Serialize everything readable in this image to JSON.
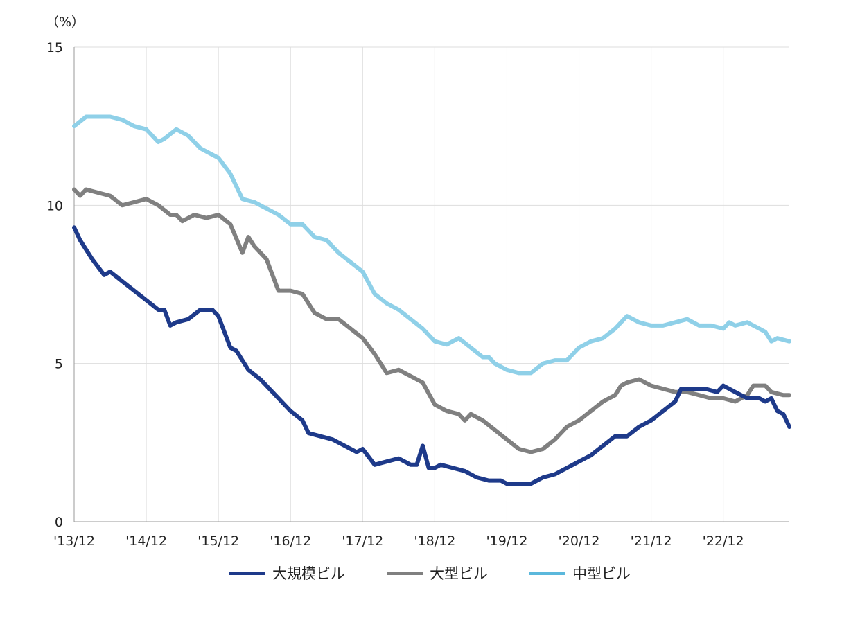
{
  "chart_data": {
    "type": "line",
    "unit_label": "（%）",
    "ylim": [
      0,
      15
    ],
    "yticks": [
      0,
      5,
      10,
      15
    ],
    "xlim": [
      2013.917,
      2023.833
    ],
    "xticks": [
      {
        "label": "'13/12",
        "value": 2013.917
      },
      {
        "label": "'14/12",
        "value": 2014.917
      },
      {
        "label": "'15/12",
        "value": 2015.917
      },
      {
        "label": "'16/12",
        "value": 2016.917
      },
      {
        "label": "'17/12",
        "value": 2017.917
      },
      {
        "label": "'18/12",
        "value": 2018.917
      },
      {
        "label": "'19/12",
        "value": 2019.917
      },
      {
        "label": "'20/12",
        "value": 2020.917
      },
      {
        "label": "'21/12",
        "value": 2021.917
      },
      {
        "label": "'22/12",
        "value": 2022.917
      }
    ],
    "grid": "vertical-and-horizontal",
    "legend_position": "bottom",
    "series": [
      {
        "name": "大規模ビル",
        "color": "#1e3a8a",
        "points": [
          [
            2013.917,
            9.3
          ],
          [
            2014.0,
            8.9
          ],
          [
            2014.167,
            8.3
          ],
          [
            2014.333,
            7.8
          ],
          [
            2014.417,
            7.9
          ],
          [
            2014.583,
            7.6
          ],
          [
            2014.75,
            7.3
          ],
          [
            2014.917,
            7.0
          ],
          [
            2015.083,
            6.7
          ],
          [
            2015.167,
            6.7
          ],
          [
            2015.25,
            6.2
          ],
          [
            2015.333,
            6.3
          ],
          [
            2015.5,
            6.4
          ],
          [
            2015.667,
            6.7
          ],
          [
            2015.833,
            6.7
          ],
          [
            2015.917,
            6.5
          ],
          [
            2016.083,
            5.5
          ],
          [
            2016.167,
            5.4
          ],
          [
            2016.333,
            4.8
          ],
          [
            2016.5,
            4.5
          ],
          [
            2016.667,
            4.1
          ],
          [
            2016.917,
            3.5
          ],
          [
            2017.083,
            3.2
          ],
          [
            2017.167,
            2.8
          ],
          [
            2017.333,
            2.7
          ],
          [
            2017.5,
            2.6
          ],
          [
            2017.667,
            2.4
          ],
          [
            2017.833,
            2.2
          ],
          [
            2017.917,
            2.3
          ],
          [
            2018.083,
            1.8
          ],
          [
            2018.25,
            1.9
          ],
          [
            2018.417,
            2.0
          ],
          [
            2018.583,
            1.8
          ],
          [
            2018.667,
            1.8
          ],
          [
            2018.75,
            2.4
          ],
          [
            2018.833,
            1.7
          ],
          [
            2018.917,
            1.7
          ],
          [
            2019.0,
            1.8
          ],
          [
            2019.167,
            1.7
          ],
          [
            2019.333,
            1.6
          ],
          [
            2019.5,
            1.4
          ],
          [
            2019.667,
            1.3
          ],
          [
            2019.833,
            1.3
          ],
          [
            2019.917,
            1.2
          ],
          [
            2020.083,
            1.2
          ],
          [
            2020.25,
            1.2
          ],
          [
            2020.417,
            1.4
          ],
          [
            2020.583,
            1.5
          ],
          [
            2020.75,
            1.7
          ],
          [
            2020.917,
            1.9
          ],
          [
            2021.083,
            2.1
          ],
          [
            2021.25,
            2.4
          ],
          [
            2021.417,
            2.7
          ],
          [
            2021.583,
            2.7
          ],
          [
            2021.75,
            3.0
          ],
          [
            2021.917,
            3.2
          ],
          [
            2022.083,
            3.5
          ],
          [
            2022.25,
            3.8
          ],
          [
            2022.333,
            4.2
          ],
          [
            2022.5,
            4.2
          ],
          [
            2022.667,
            4.2
          ],
          [
            2022.833,
            4.1
          ],
          [
            2022.917,
            4.3
          ],
          [
            2023.083,
            4.1
          ],
          [
            2023.25,
            3.9
          ],
          [
            2023.417,
            3.9
          ],
          [
            2023.5,
            3.8
          ],
          [
            2023.583,
            3.9
          ],
          [
            2023.667,
            3.5
          ],
          [
            2023.75,
            3.4
          ],
          [
            2023.833,
            3.0
          ]
        ]
      },
      {
        "name": "大型ビル",
        "color": "#808080",
        "points": [
          [
            2013.917,
            10.5
          ],
          [
            2014.0,
            10.3
          ],
          [
            2014.083,
            10.5
          ],
          [
            2014.25,
            10.4
          ],
          [
            2014.417,
            10.3
          ],
          [
            2014.583,
            10.0
          ],
          [
            2014.75,
            10.1
          ],
          [
            2014.917,
            10.2
          ],
          [
            2015.083,
            10.0
          ],
          [
            2015.25,
            9.7
          ],
          [
            2015.333,
            9.7
          ],
          [
            2015.417,
            9.5
          ],
          [
            2015.583,
            9.7
          ],
          [
            2015.75,
            9.6
          ],
          [
            2015.917,
            9.7
          ],
          [
            2016.083,
            9.4
          ],
          [
            2016.25,
            8.5
          ],
          [
            2016.333,
            9.0
          ],
          [
            2016.417,
            8.7
          ],
          [
            2016.583,
            8.3
          ],
          [
            2016.75,
            7.3
          ],
          [
            2016.917,
            7.3
          ],
          [
            2017.083,
            7.2
          ],
          [
            2017.25,
            6.6
          ],
          [
            2017.417,
            6.4
          ],
          [
            2017.583,
            6.4
          ],
          [
            2017.75,
            6.1
          ],
          [
            2017.917,
            5.8
          ],
          [
            2018.083,
            5.3
          ],
          [
            2018.25,
            4.7
          ],
          [
            2018.417,
            4.8
          ],
          [
            2018.583,
            4.6
          ],
          [
            2018.75,
            4.4
          ],
          [
            2018.917,
            3.7
          ],
          [
            2019.083,
            3.5
          ],
          [
            2019.25,
            3.4
          ],
          [
            2019.333,
            3.2
          ],
          [
            2019.417,
            3.4
          ],
          [
            2019.583,
            3.2
          ],
          [
            2019.75,
            2.9
          ],
          [
            2019.917,
            2.6
          ],
          [
            2020.083,
            2.3
          ],
          [
            2020.25,
            2.2
          ],
          [
            2020.417,
            2.3
          ],
          [
            2020.583,
            2.6
          ],
          [
            2020.75,
            3.0
          ],
          [
            2020.917,
            3.2
          ],
          [
            2021.083,
            3.5
          ],
          [
            2021.25,
            3.8
          ],
          [
            2021.417,
            4.0
          ],
          [
            2021.5,
            4.3
          ],
          [
            2021.583,
            4.4
          ],
          [
            2021.75,
            4.5
          ],
          [
            2021.917,
            4.3
          ],
          [
            2022.083,
            4.2
          ],
          [
            2022.25,
            4.1
          ],
          [
            2022.417,
            4.1
          ],
          [
            2022.583,
            4.0
          ],
          [
            2022.75,
            3.9
          ],
          [
            2022.917,
            3.9
          ],
          [
            2023.083,
            3.8
          ],
          [
            2023.25,
            4.0
          ],
          [
            2023.333,
            4.3
          ],
          [
            2023.5,
            4.3
          ],
          [
            2023.583,
            4.1
          ],
          [
            2023.75,
            4.0
          ],
          [
            2023.833,
            4.0
          ]
        ]
      },
      {
        "name": "中型ビル",
        "color": "#8fd0e8",
        "points": [
          [
            2013.917,
            12.5
          ],
          [
            2014.083,
            12.8
          ],
          [
            2014.25,
            12.8
          ],
          [
            2014.417,
            12.8
          ],
          [
            2014.583,
            12.7
          ],
          [
            2014.75,
            12.5
          ],
          [
            2014.917,
            12.4
          ],
          [
            2015.083,
            12.0
          ],
          [
            2015.167,
            12.1
          ],
          [
            2015.333,
            12.4
          ],
          [
            2015.5,
            12.2
          ],
          [
            2015.667,
            11.8
          ],
          [
            2015.833,
            11.6
          ],
          [
            2015.917,
            11.5
          ],
          [
            2016.083,
            11.0
          ],
          [
            2016.25,
            10.2
          ],
          [
            2016.417,
            10.1
          ],
          [
            2016.583,
            9.9
          ],
          [
            2016.75,
            9.7
          ],
          [
            2016.917,
            9.4
          ],
          [
            2017.083,
            9.4
          ],
          [
            2017.25,
            9.0
          ],
          [
            2017.417,
            8.9
          ],
          [
            2017.583,
            8.5
          ],
          [
            2017.75,
            8.2
          ],
          [
            2017.917,
            7.9
          ],
          [
            2018.083,
            7.2
          ],
          [
            2018.25,
            6.9
          ],
          [
            2018.417,
            6.7
          ],
          [
            2018.583,
            6.4
          ],
          [
            2018.75,
            6.1
          ],
          [
            2018.917,
            5.7
          ],
          [
            2019.083,
            5.6
          ],
          [
            2019.25,
            5.8
          ],
          [
            2019.417,
            5.5
          ],
          [
            2019.583,
            5.2
          ],
          [
            2019.667,
            5.2
          ],
          [
            2019.75,
            5.0
          ],
          [
            2019.917,
            4.8
          ],
          [
            2020.083,
            4.7
          ],
          [
            2020.25,
            4.7
          ],
          [
            2020.417,
            5.0
          ],
          [
            2020.583,
            5.1
          ],
          [
            2020.75,
            5.1
          ],
          [
            2020.917,
            5.5
          ],
          [
            2021.083,
            5.7
          ],
          [
            2021.25,
            5.8
          ],
          [
            2021.417,
            6.1
          ],
          [
            2021.583,
            6.5
          ],
          [
            2021.75,
            6.3
          ],
          [
            2021.917,
            6.2
          ],
          [
            2022.083,
            6.2
          ],
          [
            2022.25,
            6.3
          ],
          [
            2022.417,
            6.4
          ],
          [
            2022.583,
            6.2
          ],
          [
            2022.75,
            6.2
          ],
          [
            2022.917,
            6.1
          ],
          [
            2023.0,
            6.3
          ],
          [
            2023.083,
            6.2
          ],
          [
            2023.25,
            6.3
          ],
          [
            2023.417,
            6.1
          ],
          [
            2023.5,
            6.0
          ],
          [
            2023.583,
            5.7
          ],
          [
            2023.667,
            5.8
          ],
          [
            2023.833,
            5.7
          ]
        ]
      }
    ]
  }
}
